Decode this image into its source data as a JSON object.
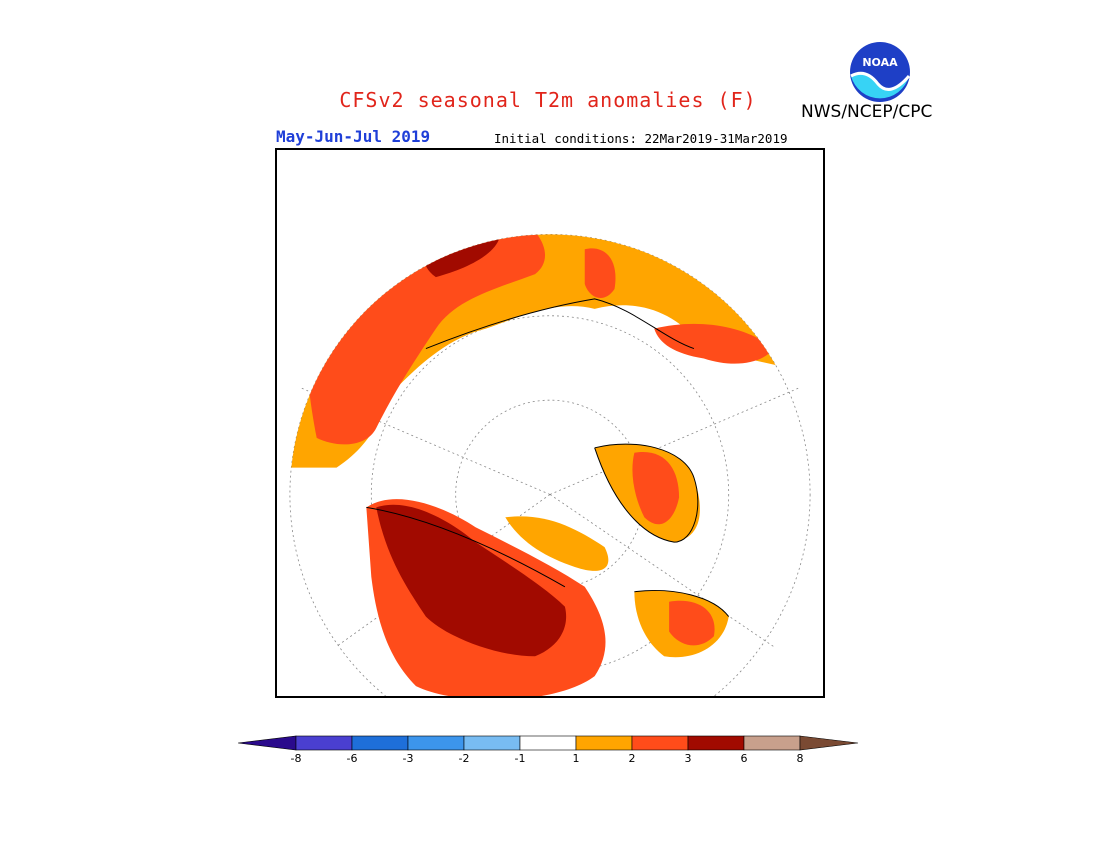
{
  "title": "CFSv2 seasonal T2m anomalies (F)",
  "agency": "NWS/NCEP/CPC",
  "period": "May-Jun-Jul 2019",
  "initial_conditions": "Initial conditions: 22Mar2019-31Mar2019",
  "logo": {
    "text": "NOAA",
    "icon": "noaa-logo-icon"
  },
  "colors": {
    "title": "#e1251b",
    "period": "#1f3fd8",
    "cat_1_2": "#ffa500",
    "cat_2_3": "#ff4c1a",
    "cat_3_6": "#a10a00",
    "land_outline": "#000000"
  },
  "legend": {
    "tick_labels": [
      "-8",
      "-6",
      "-3",
      "-2",
      "-1",
      "1",
      "2",
      "3",
      "6",
      "8"
    ],
    "bins": [
      {
        "range": "<-8",
        "color": "#2a0a8c"
      },
      {
        "range": "-8 to -6",
        "color": "#4a3fd0"
      },
      {
        "range": "-6 to -3",
        "color": "#1e6fd9"
      },
      {
        "range": "-3 to -2",
        "color": "#3c95ec"
      },
      {
        "range": "-2 to -1",
        "color": "#78bcf2"
      },
      {
        "range": "-1 to 1",
        "color": "#ffffff"
      },
      {
        "range": "1 to 2",
        "color": "#ffa500"
      },
      {
        "range": "2 to 3",
        "color": "#ff4c1a"
      },
      {
        "range": "3 to 6",
        "color": "#a10a00"
      },
      {
        "range": "6 to 8",
        "color": "#c8a08c"
      },
      {
        "range": ">8",
        "color": "#7a4a33"
      }
    ]
  }
}
